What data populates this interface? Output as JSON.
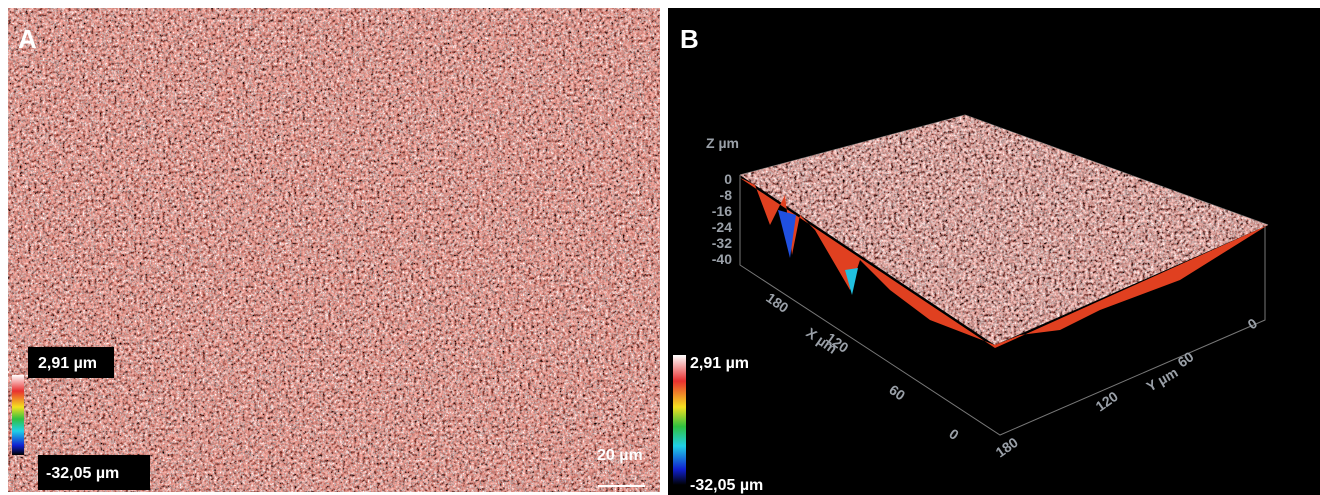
{
  "panel_a": {
    "label": "A",
    "colorbar": {
      "max": "2,91 µm",
      "min": "-32,05 µm"
    },
    "scale_bar": "20 µm"
  },
  "panel_b": {
    "label": "B",
    "z_axis": {
      "title": "Z µm",
      "ticks": [
        "0",
        "-8",
        "-16",
        "-24",
        "-32",
        "-40"
      ]
    },
    "x_axis": {
      "title": "X µm",
      "ticks": [
        "180",
        "120",
        "60",
        "0"
      ]
    },
    "y_axis": {
      "title": "Y µm",
      "ticks": [
        "0",
        "60",
        "120",
        "180"
      ]
    },
    "colorbar": {
      "max": "2,91 µm",
      "min": "-32,05 µm"
    }
  }
}
